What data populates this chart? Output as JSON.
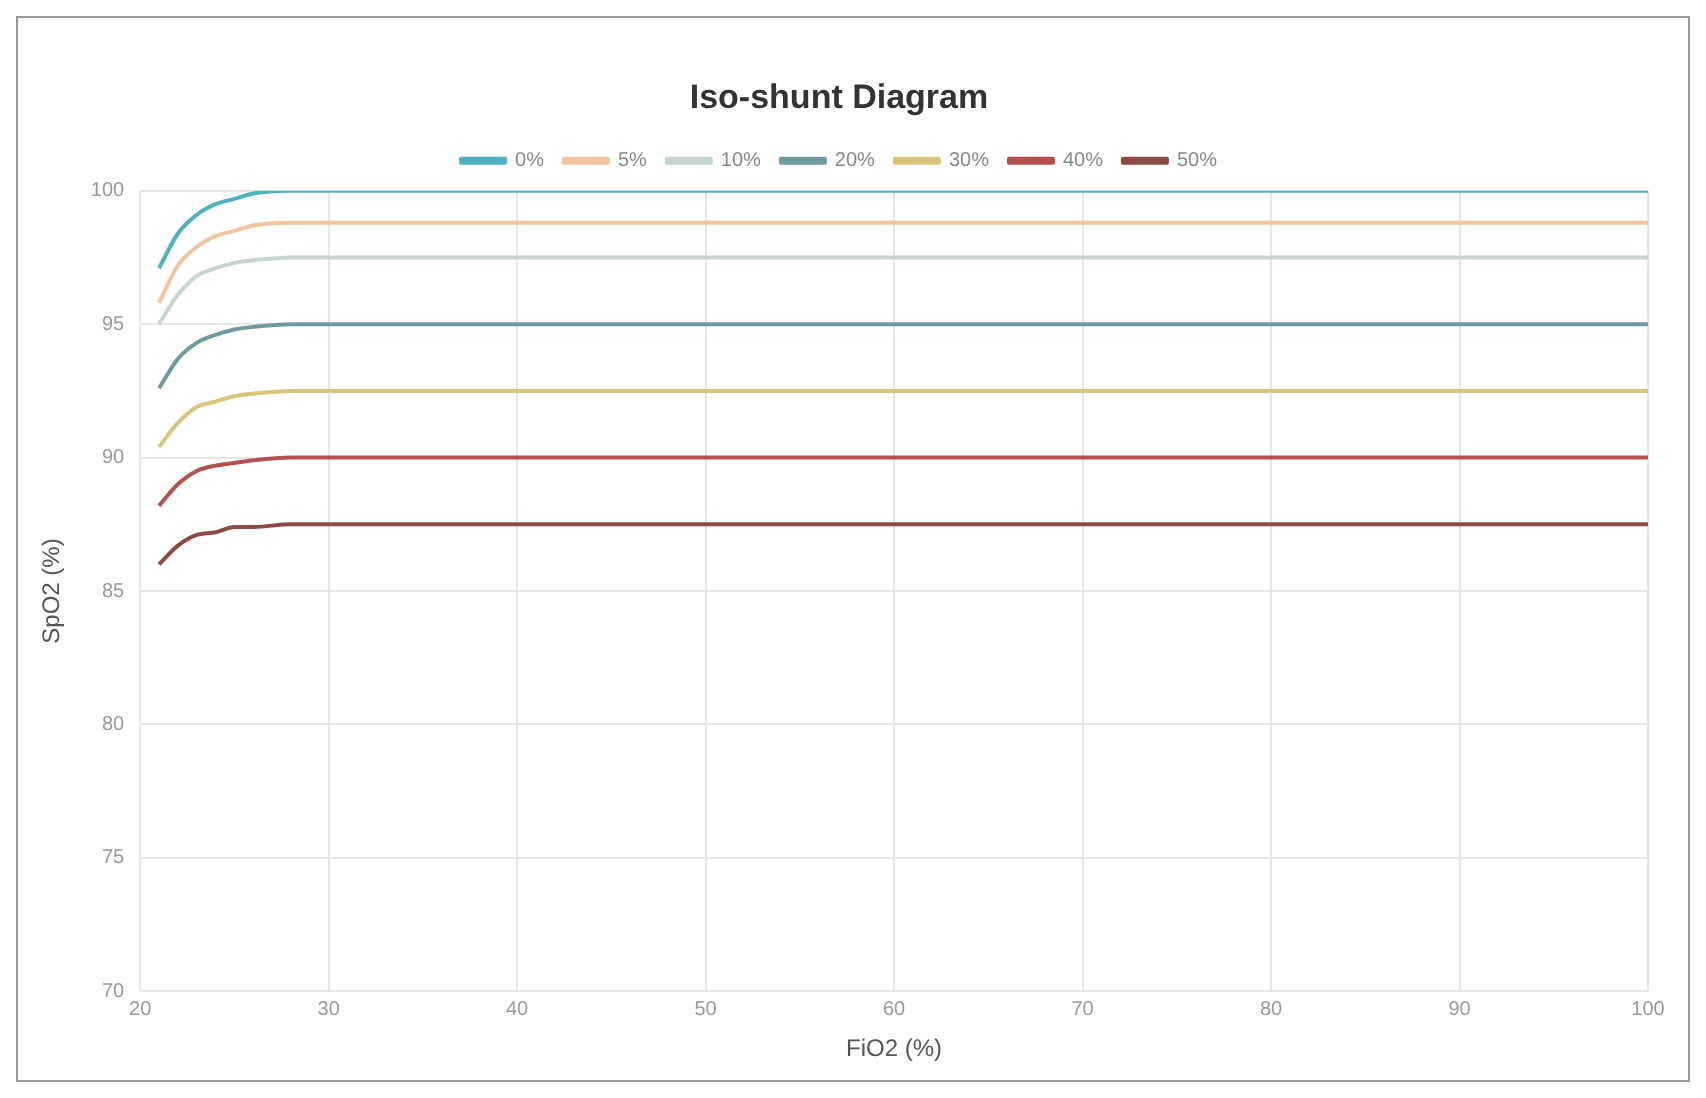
{
  "chart_data": {
    "type": "line",
    "title": "Iso-shunt Diagram",
    "xlabel": "FiO2 (%)",
    "ylabel": "SpO2 (%)",
    "x": [
      21,
      22,
      23,
      24,
      25,
      26,
      28,
      30,
      100
    ],
    "xlim": [
      20,
      100
    ],
    "xticks": [
      20,
      30,
      40,
      50,
      60,
      70,
      80,
      90,
      100
    ],
    "ylim": [
      70,
      100
    ],
    "yticks": [
      70,
      75,
      80,
      85,
      90,
      95,
      100
    ],
    "grid": true,
    "legend": "top",
    "marker": "none",
    "line_style": "solid",
    "series": [
      {
        "name": "0%",
        "color": "#4fb3bf",
        "values": [
          97.1,
          98.4,
          99.1,
          99.5,
          99.7,
          99.9,
          100,
          100,
          100
        ]
      },
      {
        "name": "5%",
        "color": "#f2c4a0",
        "values": [
          95.8,
          97.2,
          97.9,
          98.3,
          98.5,
          98.7,
          98.8,
          98.8,
          98.8
        ]
      },
      {
        "name": "10%",
        "color": "#c5d6d0",
        "values": [
          95.0,
          96.1,
          96.8,
          97.1,
          97.3,
          97.4,
          97.5,
          97.5,
          97.5
        ]
      },
      {
        "name": "20%",
        "color": "#6f9a9e",
        "values": [
          92.6,
          93.7,
          94.3,
          94.6,
          94.8,
          94.9,
          95,
          95,
          95
        ]
      },
      {
        "name": "30%",
        "color": "#d9c57a",
        "values": [
          90.4,
          91.3,
          91.9,
          92.1,
          92.3,
          92.4,
          92.5,
          92.5,
          92.5
        ]
      },
      {
        "name": "40%",
        "color": "#b5504f",
        "values": [
          88.2,
          89.0,
          89.5,
          89.7,
          89.8,
          89.9,
          90,
          90,
          90
        ]
      },
      {
        "name": "50%",
        "color": "#8c4a45",
        "values": [
          86.0,
          86.7,
          87.1,
          87.2,
          87.4,
          87.4,
          87.5,
          87.5,
          87.5
        ]
      }
    ]
  }
}
